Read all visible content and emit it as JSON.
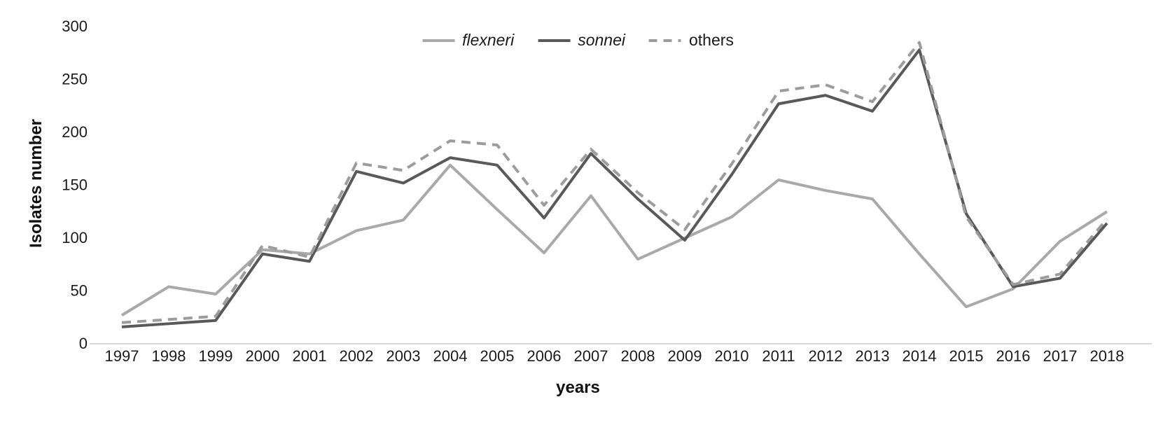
{
  "figure": {
    "y_axis_title": "Isolates number",
    "x_axis_title": "years"
  },
  "chart_data": {
    "type": "line",
    "title": "",
    "xlabel": "years",
    "ylabel": "Isolates number",
    "ylim": [
      0,
      300
    ],
    "yticks": [
      0,
      50,
      100,
      150,
      200,
      250,
      300
    ],
    "grid": false,
    "legend_position": "top-center",
    "axis_line_color": "#d9d9d9",
    "categories": [
      "1997",
      "1998",
      "1999",
      "2000",
      "2001",
      "2002",
      "2003",
      "2004",
      "2005",
      "2006",
      "2007",
      "2008",
      "2009",
      "2010",
      "2011",
      "2012",
      "2013",
      "2014",
      "2015",
      "2016",
      "2017",
      "2018"
    ],
    "series": [
      {
        "name": "flexneri",
        "label_italic": true,
        "style": "solid",
        "color": "#a9a9a9",
        "values": [
          27,
          54,
          47,
          89,
          85,
          107,
          117,
          169,
          127,
          86,
          140,
          80,
          100,
          120,
          155,
          145,
          137,
          85,
          35,
          52,
          97,
          125
        ]
      },
      {
        "name": "sonnei",
        "label_italic": true,
        "style": "solid",
        "color": "#595959",
        "values": [
          16,
          19,
          22,
          85,
          78,
          163,
          152,
          176,
          169,
          119,
          180,
          137,
          98,
          160,
          227,
          235,
          220,
          278,
          123,
          54,
          62,
          114
        ]
      },
      {
        "name": "others",
        "label_italic": false,
        "style": "dashed",
        "color": "#9c9c9c",
        "values": [
          20,
          23,
          26,
          93,
          82,
          171,
          164,
          192,
          188,
          131,
          184,
          143,
          108,
          170,
          239,
          245,
          229,
          285,
          120,
          56,
          66,
          118
        ]
      }
    ]
  }
}
